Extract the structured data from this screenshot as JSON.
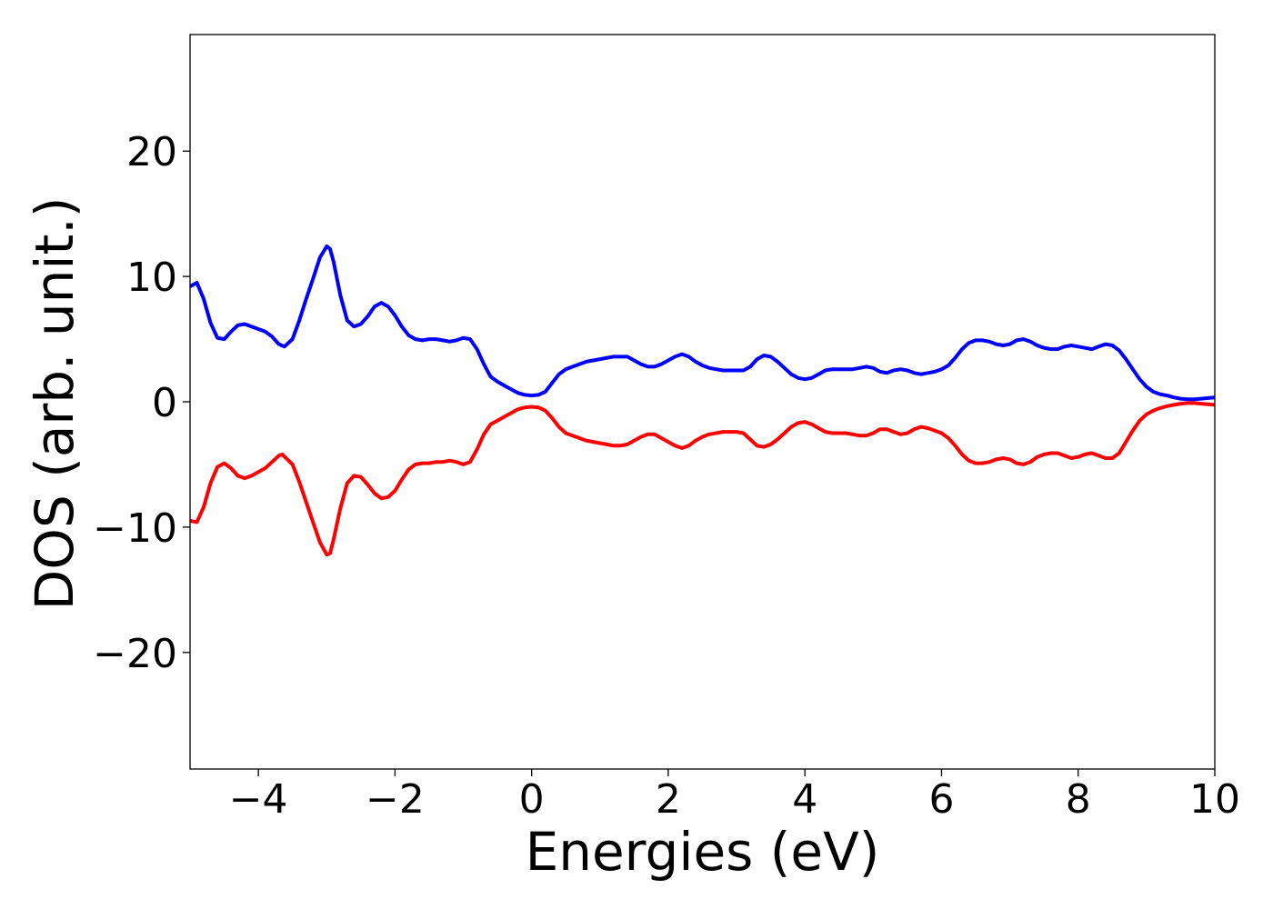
{
  "chart_data": {
    "type": "line",
    "title": "",
    "xlabel": "Energies (eV)",
    "ylabel": "DOS (arb. unit.)",
    "xlim": [
      -5,
      10
    ],
    "ylim": [
      -29.3,
      29.3
    ],
    "xticks": [
      -4,
      -2,
      0,
      2,
      4,
      6,
      8,
      10
    ],
    "xtick_labels": [
      "−4",
      "−2",
      "0",
      "2",
      "4",
      "6",
      "8",
      "10"
    ],
    "yticks": [
      20,
      10,
      0,
      -10,
      -20
    ],
    "ytick_labels": [
      "20",
      "10",
      "0",
      "−10",
      "−20"
    ],
    "grid": false,
    "legend": "none",
    "series": [
      {
        "color": "#0000ff",
        "points": [
          [
            -5.0,
            9.2
          ],
          [
            -4.9,
            9.5
          ],
          [
            -4.8,
            8.2
          ],
          [
            -4.7,
            6.3
          ],
          [
            -4.6,
            5.1
          ],
          [
            -4.5,
            5.0
          ],
          [
            -4.4,
            5.6
          ],
          [
            -4.3,
            6.1
          ],
          [
            -4.2,
            6.2
          ],
          [
            -4.1,
            6.0
          ],
          [
            -4.0,
            5.8
          ],
          [
            -3.9,
            5.6
          ],
          [
            -3.8,
            5.2
          ],
          [
            -3.7,
            4.6
          ],
          [
            -3.62,
            4.4
          ],
          [
            -3.5,
            5.0
          ],
          [
            -3.4,
            6.5
          ],
          [
            -3.3,
            8.2
          ],
          [
            -3.2,
            9.8
          ],
          [
            -3.1,
            11.5
          ],
          [
            -3.0,
            12.4
          ],
          [
            -2.95,
            12.2
          ],
          [
            -2.9,
            11.2
          ],
          [
            -2.8,
            8.5
          ],
          [
            -2.7,
            6.5
          ],
          [
            -2.6,
            6.0
          ],
          [
            -2.5,
            6.2
          ],
          [
            -2.4,
            6.8
          ],
          [
            -2.3,
            7.6
          ],
          [
            -2.2,
            7.9
          ],
          [
            -2.1,
            7.6
          ],
          [
            -2.0,
            6.9
          ],
          [
            -1.9,
            6.0
          ],
          [
            -1.8,
            5.3
          ],
          [
            -1.7,
            5.0
          ],
          [
            -1.6,
            4.9
          ],
          [
            -1.5,
            5.0
          ],
          [
            -1.4,
            5.0
          ],
          [
            -1.3,
            4.9
          ],
          [
            -1.2,
            4.8
          ],
          [
            -1.1,
            4.9
          ],
          [
            -1.0,
            5.1
          ],
          [
            -0.9,
            5.0
          ],
          [
            -0.8,
            4.2
          ],
          [
            -0.7,
            3.0
          ],
          [
            -0.6,
            2.0
          ],
          [
            -0.5,
            1.6
          ],
          [
            -0.4,
            1.3
          ],
          [
            -0.3,
            1.0
          ],
          [
            -0.2,
            0.7
          ],
          [
            -0.1,
            0.55
          ],
          [
            0.0,
            0.5
          ],
          [
            0.1,
            0.55
          ],
          [
            0.2,
            0.8
          ],
          [
            0.3,
            1.5
          ],
          [
            0.4,
            2.2
          ],
          [
            0.5,
            2.6
          ],
          [
            0.6,
            2.8
          ],
          [
            0.7,
            3.0
          ],
          [
            0.8,
            3.2
          ],
          [
            0.9,
            3.3
          ],
          [
            1.0,
            3.4
          ],
          [
            1.1,
            3.5
          ],
          [
            1.2,
            3.6
          ],
          [
            1.3,
            3.6
          ],
          [
            1.4,
            3.6
          ],
          [
            1.5,
            3.3
          ],
          [
            1.6,
            3.0
          ],
          [
            1.7,
            2.8
          ],
          [
            1.8,
            2.8
          ],
          [
            1.9,
            3.0
          ],
          [
            2.0,
            3.3
          ],
          [
            2.1,
            3.6
          ],
          [
            2.2,
            3.8
          ],
          [
            2.3,
            3.6
          ],
          [
            2.4,
            3.2
          ],
          [
            2.5,
            2.9
          ],
          [
            2.6,
            2.7
          ],
          [
            2.7,
            2.6
          ],
          [
            2.8,
            2.5
          ],
          [
            2.9,
            2.5
          ],
          [
            3.0,
            2.5
          ],
          [
            3.1,
            2.5
          ],
          [
            3.2,
            2.8
          ],
          [
            3.3,
            3.4
          ],
          [
            3.4,
            3.7
          ],
          [
            3.5,
            3.6
          ],
          [
            3.6,
            3.2
          ],
          [
            3.7,
            2.7
          ],
          [
            3.8,
            2.2
          ],
          [
            3.9,
            1.9
          ],
          [
            4.0,
            1.8
          ],
          [
            4.1,
            1.9
          ],
          [
            4.2,
            2.2
          ],
          [
            4.3,
            2.5
          ],
          [
            4.4,
            2.6
          ],
          [
            4.5,
            2.6
          ],
          [
            4.6,
            2.6
          ],
          [
            4.7,
            2.6
          ],
          [
            4.8,
            2.7
          ],
          [
            4.9,
            2.8
          ],
          [
            5.0,
            2.7
          ],
          [
            5.1,
            2.4
          ],
          [
            5.2,
            2.3
          ],
          [
            5.3,
            2.5
          ],
          [
            5.4,
            2.6
          ],
          [
            5.5,
            2.5
          ],
          [
            5.6,
            2.3
          ],
          [
            5.7,
            2.2
          ],
          [
            5.8,
            2.3
          ],
          [
            5.9,
            2.4
          ],
          [
            6.0,
            2.6
          ],
          [
            6.1,
            2.9
          ],
          [
            6.2,
            3.5
          ],
          [
            6.3,
            4.2
          ],
          [
            6.4,
            4.7
          ],
          [
            6.5,
            4.9
          ],
          [
            6.6,
            4.9
          ],
          [
            6.7,
            4.8
          ],
          [
            6.8,
            4.6
          ],
          [
            6.9,
            4.5
          ],
          [
            7.0,
            4.6
          ],
          [
            7.1,
            4.9
          ],
          [
            7.2,
            5.0
          ],
          [
            7.3,
            4.8
          ],
          [
            7.4,
            4.5
          ],
          [
            7.5,
            4.3
          ],
          [
            7.6,
            4.2
          ],
          [
            7.7,
            4.2
          ],
          [
            7.8,
            4.4
          ],
          [
            7.9,
            4.5
          ],
          [
            8.0,
            4.4
          ],
          [
            8.1,
            4.3
          ],
          [
            8.2,
            4.2
          ],
          [
            8.3,
            4.4
          ],
          [
            8.4,
            4.6
          ],
          [
            8.5,
            4.5
          ],
          [
            8.6,
            4.1
          ],
          [
            8.7,
            3.4
          ],
          [
            8.8,
            2.6
          ],
          [
            8.9,
            1.8
          ],
          [
            9.0,
            1.2
          ],
          [
            9.1,
            0.8
          ],
          [
            9.2,
            0.6
          ],
          [
            9.3,
            0.5
          ],
          [
            9.4,
            0.35
          ],
          [
            9.5,
            0.25
          ],
          [
            9.6,
            0.2
          ],
          [
            9.7,
            0.2
          ],
          [
            9.8,
            0.25
          ],
          [
            9.9,
            0.3
          ],
          [
            10.0,
            0.35
          ]
        ]
      },
      {
        "color": "#ff0000",
        "points": [
          [
            -5.0,
            -9.5
          ],
          [
            -4.9,
            -9.6
          ],
          [
            -4.8,
            -8.4
          ],
          [
            -4.7,
            -6.5
          ],
          [
            -4.6,
            -5.2
          ],
          [
            -4.5,
            -4.9
          ],
          [
            -4.4,
            -5.3
          ],
          [
            -4.3,
            -5.9
          ],
          [
            -4.2,
            -6.1
          ],
          [
            -4.1,
            -5.9
          ],
          [
            -4.0,
            -5.6
          ],
          [
            -3.9,
            -5.3
          ],
          [
            -3.8,
            -4.8
          ],
          [
            -3.7,
            -4.3
          ],
          [
            -3.65,
            -4.2
          ],
          [
            -3.5,
            -5.0
          ],
          [
            -3.4,
            -6.4
          ],
          [
            -3.3,
            -8.0
          ],
          [
            -3.2,
            -9.6
          ],
          [
            -3.1,
            -11.2
          ],
          [
            -3.0,
            -12.2
          ],
          [
            -2.95,
            -12.1
          ],
          [
            -2.9,
            -11.0
          ],
          [
            -2.8,
            -8.5
          ],
          [
            -2.7,
            -6.5
          ],
          [
            -2.6,
            -5.9
          ],
          [
            -2.5,
            -6.0
          ],
          [
            -2.4,
            -6.6
          ],
          [
            -2.3,
            -7.3
          ],
          [
            -2.2,
            -7.7
          ],
          [
            -2.1,
            -7.6
          ],
          [
            -2.0,
            -7.1
          ],
          [
            -1.9,
            -6.2
          ],
          [
            -1.8,
            -5.4
          ],
          [
            -1.7,
            -5.0
          ],
          [
            -1.6,
            -4.9
          ],
          [
            -1.5,
            -4.9
          ],
          [
            -1.4,
            -4.8
          ],
          [
            -1.3,
            -4.8
          ],
          [
            -1.2,
            -4.7
          ],
          [
            -1.1,
            -4.8
          ],
          [
            -1.0,
            -5.0
          ],
          [
            -0.9,
            -4.8
          ],
          [
            -0.8,
            -3.8
          ],
          [
            -0.7,
            -2.6
          ],
          [
            -0.6,
            -1.8
          ],
          [
            -0.5,
            -1.5
          ],
          [
            -0.4,
            -1.2
          ],
          [
            -0.3,
            -0.9
          ],
          [
            -0.2,
            -0.6
          ],
          [
            -0.1,
            -0.45
          ],
          [
            0.0,
            -0.4
          ],
          [
            0.1,
            -0.45
          ],
          [
            0.2,
            -0.7
          ],
          [
            0.3,
            -1.3
          ],
          [
            0.4,
            -2.0
          ],
          [
            0.5,
            -2.5
          ],
          [
            0.6,
            -2.7
          ],
          [
            0.7,
            -2.9
          ],
          [
            0.8,
            -3.1
          ],
          [
            0.9,
            -3.2
          ],
          [
            1.0,
            -3.3
          ],
          [
            1.1,
            -3.4
          ],
          [
            1.2,
            -3.5
          ],
          [
            1.3,
            -3.5
          ],
          [
            1.4,
            -3.4
          ],
          [
            1.5,
            -3.1
          ],
          [
            1.6,
            -2.8
          ],
          [
            1.7,
            -2.6
          ],
          [
            1.8,
            -2.6
          ],
          [
            1.9,
            -2.9
          ],
          [
            2.0,
            -3.2
          ],
          [
            2.1,
            -3.5
          ],
          [
            2.2,
            -3.7
          ],
          [
            2.3,
            -3.5
          ],
          [
            2.4,
            -3.1
          ],
          [
            2.5,
            -2.8
          ],
          [
            2.6,
            -2.6
          ],
          [
            2.7,
            -2.5
          ],
          [
            2.8,
            -2.4
          ],
          [
            2.9,
            -2.4
          ],
          [
            3.0,
            -2.4
          ],
          [
            3.1,
            -2.5
          ],
          [
            3.2,
            -3.0
          ],
          [
            3.3,
            -3.5
          ],
          [
            3.4,
            -3.6
          ],
          [
            3.5,
            -3.4
          ],
          [
            3.6,
            -3.0
          ],
          [
            3.7,
            -2.5
          ],
          [
            3.8,
            -2.0
          ],
          [
            3.9,
            -1.7
          ],
          [
            4.0,
            -1.6
          ],
          [
            4.1,
            -1.8
          ],
          [
            4.2,
            -2.1
          ],
          [
            4.3,
            -2.4
          ],
          [
            4.4,
            -2.5
          ],
          [
            4.5,
            -2.5
          ],
          [
            4.6,
            -2.5
          ],
          [
            4.7,
            -2.6
          ],
          [
            4.8,
            -2.7
          ],
          [
            4.9,
            -2.7
          ],
          [
            5.0,
            -2.5
          ],
          [
            5.1,
            -2.2
          ],
          [
            5.2,
            -2.2
          ],
          [
            5.3,
            -2.4
          ],
          [
            5.4,
            -2.6
          ],
          [
            5.5,
            -2.5
          ],
          [
            5.6,
            -2.2
          ],
          [
            5.7,
            -2.0
          ],
          [
            5.8,
            -2.1
          ],
          [
            5.9,
            -2.3
          ],
          [
            6.0,
            -2.5
          ],
          [
            6.1,
            -2.9
          ],
          [
            6.2,
            -3.5
          ],
          [
            6.3,
            -4.2
          ],
          [
            6.4,
            -4.7
          ],
          [
            6.5,
            -4.9
          ],
          [
            6.6,
            -4.9
          ],
          [
            6.7,
            -4.8
          ],
          [
            6.8,
            -4.6
          ],
          [
            6.9,
            -4.5
          ],
          [
            7.0,
            -4.6
          ],
          [
            7.1,
            -4.9
          ],
          [
            7.2,
            -5.0
          ],
          [
            7.3,
            -4.8
          ],
          [
            7.4,
            -4.4
          ],
          [
            7.5,
            -4.2
          ],
          [
            7.6,
            -4.1
          ],
          [
            7.7,
            -4.1
          ],
          [
            7.8,
            -4.3
          ],
          [
            7.9,
            -4.5
          ],
          [
            8.0,
            -4.4
          ],
          [
            8.1,
            -4.2
          ],
          [
            8.2,
            -4.1
          ],
          [
            8.3,
            -4.3
          ],
          [
            8.4,
            -4.5
          ],
          [
            8.5,
            -4.5
          ],
          [
            8.6,
            -4.1
          ],
          [
            8.7,
            -3.2
          ],
          [
            8.8,
            -2.3
          ],
          [
            8.9,
            -1.5
          ],
          [
            9.0,
            -1.0
          ],
          [
            9.1,
            -0.7
          ],
          [
            9.2,
            -0.5
          ],
          [
            9.3,
            -0.35
          ],
          [
            9.4,
            -0.25
          ],
          [
            9.5,
            -0.15
          ],
          [
            9.6,
            -0.1
          ],
          [
            9.7,
            -0.1
          ],
          [
            9.8,
            -0.15
          ],
          [
            9.9,
            -0.2
          ],
          [
            10.0,
            -0.25
          ]
        ]
      }
    ]
  }
}
